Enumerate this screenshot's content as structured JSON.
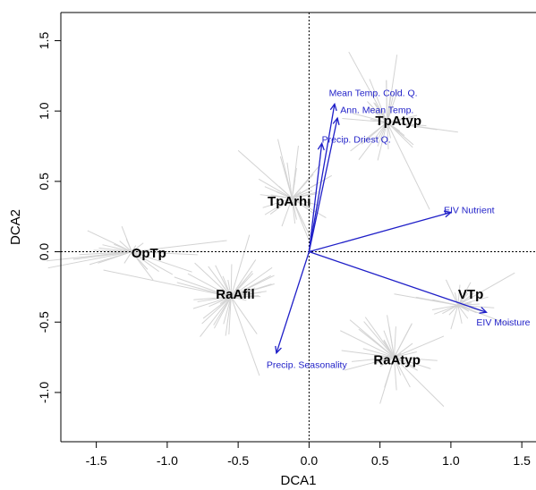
{
  "chart_data": {
    "type": "scatter",
    "title": "",
    "xlabel": "DCA1",
    "ylabel": "DCA2",
    "xlim": [
      -1.75,
      1.6
    ],
    "ylim": [
      -1.35,
      1.7
    ],
    "x_ticks": [
      -1.5,
      -1.0,
      -0.5,
      0.0,
      0.5,
      1.0,
      1.5
    ],
    "x_tick_labels": [
      "-1.5",
      "-1.0",
      "-0.5",
      "0.0",
      "0.5",
      "1.0",
      "1.5"
    ],
    "y_ticks": [
      -1.0,
      -0.5,
      0.0,
      0.5,
      1.0,
      1.5
    ],
    "y_tick_labels": [
      "-1.0",
      "-0.5",
      "0.0",
      "0.5",
      "1.0",
      "1.5"
    ],
    "reference_lines": {
      "x": 0,
      "y": 0,
      "style": "dotted"
    },
    "grid": false,
    "legend": "none",
    "colors": {
      "spider": "#d3d3d3",
      "vector": "#1f1fc8",
      "axes": "#000000",
      "reference": "#000000"
    },
    "groups": [
      {
        "name": "OpTp",
        "centroid": [
          -1.25,
          0.0
        ],
        "spread": [
          0.55,
          0.18
        ],
        "count": 24,
        "extremes": [
          [
            -1.62,
            -0.02
          ],
          [
            -0.58,
            0.08
          ],
          [
            -1.32,
            0.18
          ],
          [
            -1.1,
            -0.2
          ]
        ]
      },
      {
        "name": "RaAfil",
        "centroid": [
          -0.55,
          -0.32
        ],
        "spread": [
          0.35,
          0.28
        ],
        "count": 44,
        "extremes": [
          [
            -1.45,
            -0.13
          ],
          [
            -0.95,
            -0.18
          ],
          [
            -0.42,
            0.12
          ],
          [
            -0.35,
            -0.88
          ]
        ]
      },
      {
        "name": "TpArhi",
        "centroid": [
          -0.12,
          0.38
        ],
        "spread": [
          0.25,
          0.3
        ],
        "count": 30,
        "extremes": [
          [
            -0.5,
            0.72
          ],
          [
            -0.22,
            0.8
          ],
          [
            0.08,
            0.62
          ],
          [
            0.02,
            0.08
          ]
        ]
      },
      {
        "name": "TpAtyp",
        "centroid": [
          0.55,
          0.92
        ],
        "spread": [
          0.3,
          0.32
        ],
        "count": 30,
        "extremes": [
          [
            0.28,
            1.42
          ],
          [
            0.62,
            1.4
          ],
          [
            1.05,
            0.85
          ],
          [
            0.85,
            0.3
          ]
        ]
      },
      {
        "name": "VTp",
        "centroid": [
          1.05,
          -0.38
        ],
        "spread": [
          0.3,
          0.12
        ],
        "count": 22,
        "extremes": [
          [
            1.45,
            -0.15
          ],
          [
            1.42,
            -0.52
          ],
          [
            0.6,
            -0.3
          ],
          [
            1.0,
            -0.55
          ]
        ]
      },
      {
        "name": "RaAtyp",
        "centroid": [
          0.6,
          -0.75
        ],
        "spread": [
          0.32,
          0.3
        ],
        "count": 30,
        "extremes": [
          [
            0.55,
            -0.45
          ],
          [
            0.5,
            -1.08
          ],
          [
            0.95,
            -1.1
          ],
          [
            0.95,
            -0.6
          ],
          [
            0.35,
            -0.55
          ]
        ]
      }
    ],
    "label_positions": {
      "OpTp": [
        -1.13,
        -0.01
      ],
      "RaAfil": [
        -0.52,
        -0.3
      ],
      "TpArhi": [
        -0.14,
        0.36
      ],
      "TpAtyp": [
        0.63,
        0.93
      ],
      "VTp": [
        1.14,
        -0.3
      ],
      "RaAtyp": [
        0.62,
        -0.77
      ]
    },
    "vectors": [
      {
        "name": "Mean Temp. Cold. Q.",
        "x": 0.18,
        "y": 1.05,
        "label_x": 0.14,
        "label_y": 1.13,
        "anchor": "start"
      },
      {
        "name": "Ann. Mean Temp.",
        "x": 0.2,
        "y": 0.95,
        "label_x": 0.22,
        "label_y": 1.01,
        "anchor": "start"
      },
      {
        "name": "Precip. Driest Q.",
        "x": 0.09,
        "y": 0.77,
        "label_x": 0.09,
        "label_y": 0.8,
        "anchor": "start"
      },
      {
        "name": "EIV Nutrient",
        "x": 1.0,
        "y": 0.28,
        "label_x": 0.95,
        "label_y": 0.3,
        "anchor": "start"
      },
      {
        "name": "EIV Moisture",
        "x": 1.25,
        "y": -0.43,
        "label_x": 1.18,
        "label_y": -0.5,
        "anchor": "start"
      },
      {
        "name": "Precip. Seasonality",
        "x": -0.23,
        "y": -0.72,
        "label_x": -0.3,
        "label_y": -0.8,
        "anchor": "start"
      }
    ]
  }
}
